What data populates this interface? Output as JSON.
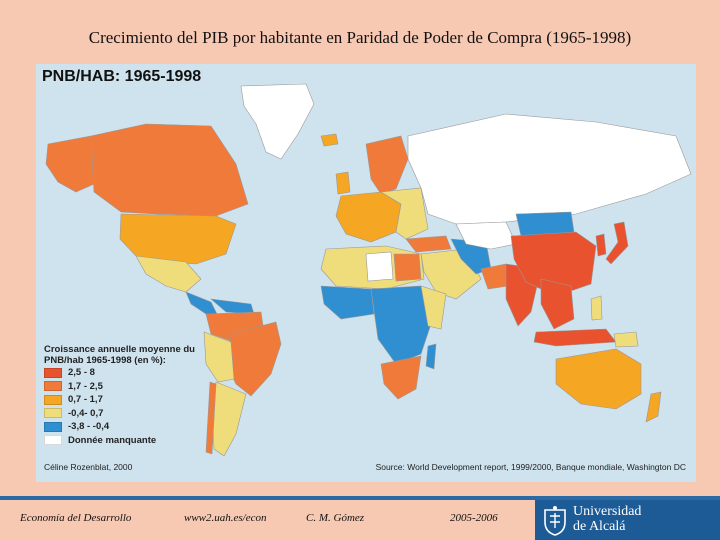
{
  "slide": {
    "title": "Crecimiento del PIB por habitante en Paridad de Poder de Compra (1965-1998)"
  },
  "map": {
    "heading": "PNB/HAB: 1965-1998",
    "legend_title": "Croissance annuelle moyenne du PNB/hab 1965-1998 (en %):",
    "legend": [
      {
        "label": "2,5 - 8",
        "color": "#e8522e"
      },
      {
        "label": "1,7 - 2,5",
        "color": "#f07a3a"
      },
      {
        "label": "0,7 - 1,7",
        "color": "#f5a623"
      },
      {
        "label": "-0,4- 0,7",
        "color": "#efdc7a"
      },
      {
        "label": "-3,8 - -0,4",
        "color": "#2f8fd0"
      },
      {
        "label": "Donnée manquante",
        "color": "#ffffff"
      }
    ],
    "credit": "Céline Rozenblat, 2000",
    "source": "Source: World Development report, 1999/2000, Banque mondiale, Washington DC",
    "ocean_color": "#cfe3ee"
  },
  "footer": {
    "course": "Economía del Desarrollo",
    "url": "www2.uah.es/econ",
    "author": "C. M. Gómez",
    "years": "2005-2006",
    "logo_line1": "Universidad",
    "logo_line2": "de Alcalá",
    "bar_color": "#2c6aa6"
  }
}
